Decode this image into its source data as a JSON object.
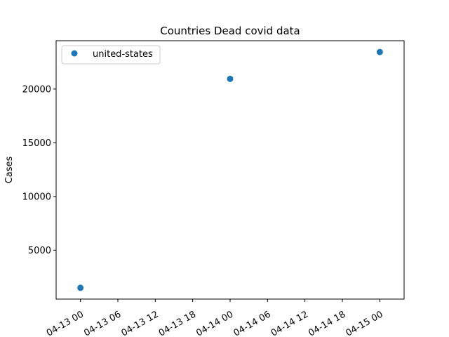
{
  "chart_data": {
    "type": "scatter",
    "title": "Countries Dead covid data",
    "xlabel": "",
    "ylabel": "Cases",
    "x_tick_labels": [
      "04-13 00",
      "04-13 06",
      "04-13 12",
      "04-13 18",
      "04-14 00",
      "04-14 06",
      "04-14 12",
      "04-14 18",
      "04-15 00"
    ],
    "x_ticks": [
      "2020-04-13T00:00",
      "2020-04-13T06:00",
      "2020-04-13T12:00",
      "2020-04-13T18:00",
      "2020-04-14T00:00",
      "2020-04-14T06:00",
      "2020-04-14T12:00",
      "2020-04-14T18:00",
      "2020-04-15T00:00"
    ],
    "xlim": [
      "2020-04-12T20:06",
      "2020-04-15T03:54"
    ],
    "y_ticks": [
      5000,
      10000,
      15000,
      20000
    ],
    "ylim": [
      450,
      24500
    ],
    "grid": false,
    "legend_position": "top-left",
    "series": [
      {
        "name": "united-states",
        "color": "#1f77b4",
        "marker": "circle",
        "x": [
          "2020-04-13T00:00",
          "2020-04-14T00:00",
          "2020-04-15T00:00"
        ],
        "y": [
          1500,
          20950,
          23450
        ]
      }
    ]
  }
}
